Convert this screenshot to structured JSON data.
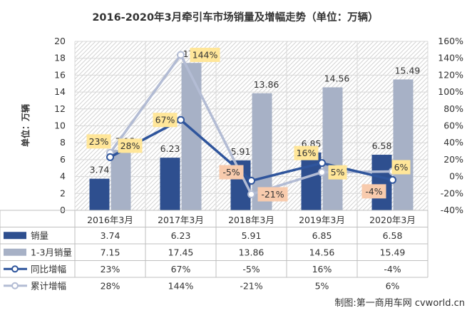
{
  "title": "2016-2020年3月牵引车市场销量及增幅走势（单位：万辆）",
  "watermark": "制图:第一商用车网 cvworld.cn",
  "colors": {
    "bar1": "#2e4f8f",
    "bar2": "#a7b1c6",
    "line1": "#2f559c",
    "line2": "#b3bcd4",
    "label_pos_fill": "#ffe699",
    "label_neg_fill": "#f8cbad",
    "grid": "#d9d9d9",
    "hatch": "#d0d0d0"
  },
  "chart_data": {
    "type": "bar",
    "title": "2016-2020年3月牵引车市场销量及增幅走势（单位：万辆）",
    "categories": [
      "2016年3月",
      "2017年3月",
      "2018年3月",
      "2019年3月",
      "2020年3月"
    ],
    "ylabel": "单位：万辆",
    "ylim": [
      0,
      20
    ],
    "yticks": [
      "0",
      "2",
      "4",
      "6",
      "8",
      "10",
      "12",
      "14",
      "16",
      "18",
      "20"
    ],
    "y2lim": [
      -40,
      160
    ],
    "y2ticks": [
      "-40%",
      "-20%",
      "0%",
      "20%",
      "40%",
      "60%",
      "80%",
      "100%",
      "120%",
      "140%",
      "160%"
    ],
    "grid": true,
    "legend": "data table",
    "series": [
      {
        "name": "销量",
        "type": "bar",
        "axis": "left",
        "values": [
          3.74,
          6.23,
          5.91,
          6.85,
          6.58
        ],
        "labels": [
          "3.74",
          "6.23",
          "5.91",
          "6.85",
          "6.58"
        ]
      },
      {
        "name": "1-3月销量",
        "type": "bar",
        "axis": "left",
        "values": [
          7.15,
          17.45,
          13.86,
          14.56,
          15.49
        ],
        "labels": [
          "7.15",
          "17.45",
          "13.86",
          "14.56",
          "15.49"
        ]
      },
      {
        "name": "同比增幅",
        "type": "line",
        "axis": "right",
        "values": [
          23,
          67,
          -5,
          16,
          -4
        ],
        "labels": [
          "23%",
          "67%",
          "-5%",
          "16%",
          "-4%"
        ]
      },
      {
        "name": "累计增幅",
        "type": "line",
        "axis": "right",
        "values": [
          28,
          144,
          -21,
          5,
          6
        ],
        "labels": [
          "28%",
          "144%",
          "-21%",
          "5%",
          "6%"
        ]
      }
    ]
  }
}
